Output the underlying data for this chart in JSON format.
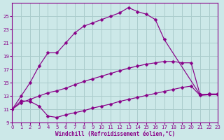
{
  "background_color": "#cce8e8",
  "grid_color": "#aacccc",
  "line_color": "#880088",
  "xlabel": "Windchill (Refroidissement éolien,°C)",
  "xlim": [
    0,
    23
  ],
  "ylim": [
    9,
    27
  ],
  "yticks": [
    9,
    11,
    13,
    15,
    17,
    19,
    21,
    23,
    25
  ],
  "xticks": [
    0,
    1,
    2,
    3,
    4,
    5,
    6,
    7,
    8,
    9,
    10,
    11,
    12,
    13,
    14,
    15,
    16,
    17,
    18,
    19,
    20,
    21,
    22,
    23
  ],
  "curve_top_x": [
    0,
    1,
    2,
    3,
    4,
    5,
    6,
    7,
    8,
    9,
    10,
    11,
    12,
    13,
    14,
    15,
    16,
    17,
    21,
    22,
    23
  ],
  "curve_top_y": [
    11.0,
    13.0,
    15.0,
    17.5,
    19.5,
    19.5,
    21.0,
    22.5,
    23.5,
    24.0,
    24.5,
    25.0,
    25.5,
    26.3,
    25.7,
    25.3,
    24.5,
    21.5,
    13.2,
    13.3,
    13.3
  ],
  "curve_mid_x": [
    0,
    1,
    2,
    3,
    4,
    5,
    6,
    7,
    8,
    9,
    10,
    11,
    12,
    13,
    14,
    15,
    16,
    17,
    18,
    19,
    20,
    21,
    22,
    23
  ],
  "curve_mid_y": [
    11.0,
    12.0,
    12.5,
    13.0,
    13.5,
    13.8,
    14.2,
    14.7,
    15.2,
    15.6,
    16.0,
    16.4,
    16.8,
    17.2,
    17.5,
    17.8,
    18.0,
    18.2,
    18.2,
    18.0,
    18.0,
    13.2,
    13.3,
    13.3
  ],
  "curve_bot_x": [
    0,
    1,
    2,
    3,
    4,
    5,
    6,
    7,
    8,
    9,
    10,
    11,
    12,
    13,
    14,
    15,
    16,
    17,
    18,
    19,
    20,
    21,
    22,
    23
  ],
  "curve_bot_y": [
    11.0,
    12.3,
    12.2,
    11.5,
    10.0,
    9.8,
    10.2,
    10.5,
    10.8,
    11.2,
    11.5,
    11.8,
    12.2,
    12.5,
    12.8,
    13.1,
    13.4,
    13.7,
    14.0,
    14.3,
    14.5,
    13.1,
    13.2,
    13.2
  ]
}
